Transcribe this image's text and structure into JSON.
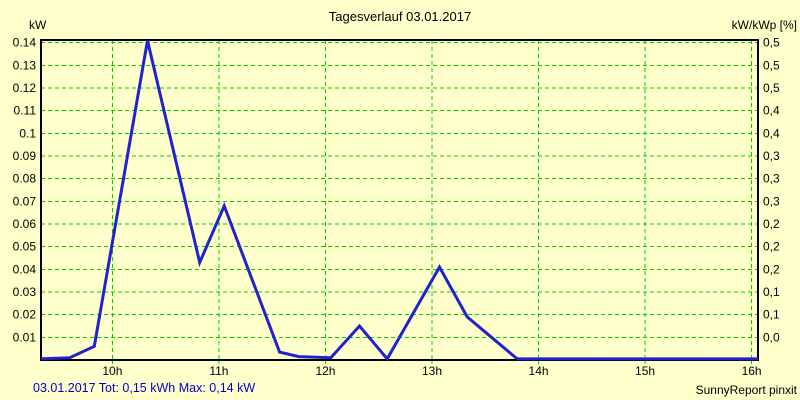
{
  "header": {
    "title": "Tagesverlauf 03.01.2017",
    "left_unit": "kW",
    "right_unit": "kW/kWp [%]"
  },
  "footer": {
    "summary": "03.01.2017 Tot: 0,15 kWh Max: 0,14 kW",
    "credit": "SunnyReport pinxit"
  },
  "colors": {
    "background": "#FFFFCC",
    "grid": "#00CC00",
    "line": "#2222CC",
    "border": "#000000",
    "text": "#000000",
    "summary_text": "#0000CC"
  },
  "chart_data": {
    "type": "line",
    "title": "Tagesverlauf 03.01.2017",
    "ylabel_left": "kW",
    "ylabel_right": "kW/kWp [%]",
    "grid": "dashed",
    "legend": "none",
    "x_range_hours": [
      9.33,
      16.06
    ],
    "y_range_kw": [
      0,
      0.1412
    ],
    "x_ticks": [
      {
        "hour": 10,
        "label": "10h"
      },
      {
        "hour": 11,
        "label": "11h"
      },
      {
        "hour": 12,
        "label": "12h"
      },
      {
        "hour": 13,
        "label": "13h"
      },
      {
        "hour": 14,
        "label": "14h"
      },
      {
        "hour": 15,
        "label": "15h"
      },
      {
        "hour": 16,
        "label": "16h"
      }
    ],
    "y_ticks": [
      {
        "kw": 0.01,
        "label": "0.01",
        "right_label": "0,0"
      },
      {
        "kw": 0.02,
        "label": "0.02",
        "right_label": "0,1"
      },
      {
        "kw": 0.03,
        "label": "0.03",
        "right_label": "0,1"
      },
      {
        "kw": 0.04,
        "label": "0.04",
        "right_label": "0,2"
      },
      {
        "kw": 0.05,
        "label": "0.05",
        "right_label": "0,2"
      },
      {
        "kw": 0.06,
        "label": "0.06",
        "right_label": "0,2"
      },
      {
        "kw": 0.07,
        "label": "0.07",
        "right_label": "0,3"
      },
      {
        "kw": 0.08,
        "label": "0.08",
        "right_label": "0,3"
      },
      {
        "kw": 0.09,
        "label": "0.09",
        "right_label": "0,3"
      },
      {
        "kw": 0.1,
        "label": "0.1",
        "right_label": "0,4"
      },
      {
        "kw": 0.11,
        "label": "0.11",
        "right_label": "0,4"
      },
      {
        "kw": 0.12,
        "label": "0.12",
        "right_label": "0,5"
      },
      {
        "kw": 0.13,
        "label": "0.13",
        "right_label": "0,5"
      },
      {
        "kw": 0.14,
        "label": "0.14",
        "right_label": "0,5"
      }
    ],
    "series": [
      {
        "name": "kW",
        "total_kwh": "0,15",
        "max_kw": "0,14",
        "points_hours_kw": [
          [
            9.33,
            0.0005
          ],
          [
            9.6,
            0.001
          ],
          [
            9.83,
            0.006
          ],
          [
            10.33,
            0.141
          ],
          [
            10.82,
            0.043
          ],
          [
            11.05,
            0.068
          ],
          [
            11.57,
            0.0035
          ],
          [
            11.75,
            0.0015
          ],
          [
            12.05,
            0.001
          ],
          [
            12.32,
            0.015
          ],
          [
            12.58,
            0.0005
          ],
          [
            13.07,
            0.041
          ],
          [
            13.33,
            0.019
          ],
          [
            13.8,
            0.0005
          ],
          [
            16.06,
            0.0005
          ]
        ]
      }
    ]
  }
}
